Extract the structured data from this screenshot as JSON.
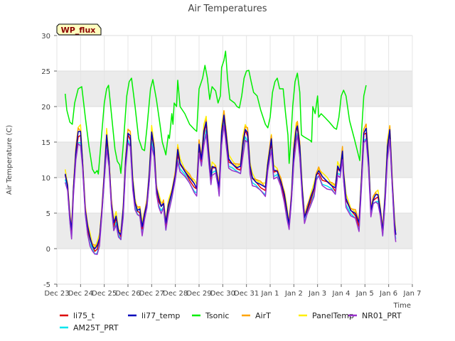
{
  "chart_data": {
    "type": "line",
    "title": "Air Temperatures",
    "ylabel": "Air Temperature (C)",
    "xlabel": "Time",
    "ylim": [
      -5,
      30
    ],
    "xlim": [
      0,
      15
    ],
    "yticks": [
      -5,
      0,
      5,
      10,
      15,
      20,
      25,
      30
    ],
    "xticks": [
      {
        "value": 0,
        "label": "Dec 23"
      },
      {
        "value": 1,
        "label": "Dec 24"
      },
      {
        "value": 2,
        "label": "Dec 25"
      },
      {
        "value": 3,
        "label": "Dec 26"
      },
      {
        "value": 4,
        "label": "Dec 27"
      },
      {
        "value": 5,
        "label": "Dec 28"
      },
      {
        "value": 6,
        "label": "Dec 29"
      },
      {
        "value": 7,
        "label": "Dec 30"
      },
      {
        "value": 8,
        "label": "Dec 31"
      },
      {
        "value": 9,
        "label": "Jan 1"
      },
      {
        "value": 10,
        "label": "Jan 2"
      },
      {
        "value": 11,
        "label": "Jan 3"
      },
      {
        "value": 12,
        "label": "Jan 4"
      },
      {
        "value": 13,
        "label": "Jan 5"
      },
      {
        "value": 14,
        "label": "Jan 6"
      },
      {
        "value": 15,
        "label": "Jan 7"
      }
    ],
    "grid": true,
    "band_fill": "#ebebeb",
    "legend_position": "bottom",
    "annotation": "WP_flux",
    "tsonic": {
      "name": "Tsonic",
      "color": "#00ee00",
      "segments": [
        [
          [
            0.35,
            21.8
          ],
          [
            0.42,
            19.5
          ],
          [
            0.55,
            17.8
          ],
          [
            0.65,
            17.5
          ],
          [
            0.75,
            20.5
          ],
          [
            0.9,
            22.5
          ],
          [
            1.05,
            22.8
          ],
          [
            1.2,
            18.5
          ],
          [
            1.35,
            14.5
          ],
          [
            1.5,
            11.2
          ],
          [
            1.6,
            10.6
          ],
          [
            1.7,
            11.0
          ],
          [
            1.75,
            10.5
          ],
          [
            1.85,
            14.5
          ],
          [
            2.0,
            20.5
          ],
          [
            2.1,
            22.5
          ],
          [
            2.18,
            23.0
          ],
          [
            2.3,
            19.0
          ],
          [
            2.45,
            14.0
          ],
          [
            2.55,
            12.3
          ],
          [
            2.65,
            11.8
          ],
          [
            2.7,
            10.6
          ],
          [
            2.8,
            14.5
          ],
          [
            2.95,
            21.5
          ],
          [
            3.05,
            23.5
          ],
          [
            3.15,
            24.0
          ],
          [
            3.3,
            20.0
          ],
          [
            3.45,
            15.5
          ],
          [
            3.6,
            14.0
          ],
          [
            3.7,
            13.8
          ],
          [
            3.8,
            17.0
          ],
          [
            3.95,
            22.5
          ],
          [
            4.05,
            23.8
          ],
          [
            4.2,
            21.0
          ],
          [
            4.35,
            17.5
          ],
          [
            4.45,
            15.0
          ],
          [
            4.55,
            13.8
          ],
          [
            4.6,
            13.2
          ],
          [
            4.7,
            16.0
          ],
          [
            4.75,
            15.5
          ],
          [
            4.85,
            19.0
          ],
          [
            4.9,
            17.5
          ],
          [
            4.95,
            20.5
          ],
          [
            5.05,
            20.0
          ],
          [
            5.1,
            23.7
          ],
          [
            5.2,
            20.0
          ],
          [
            5.4,
            19.0
          ],
          [
            5.6,
            17.5
          ],
          [
            5.8,
            16.8
          ],
          [
            5.9,
            16.5
          ],
          [
            6.0,
            22.5
          ],
          [
            6.15,
            24.0
          ],
          [
            6.25,
            25.8
          ],
          [
            6.35,
            24.0
          ],
          [
            6.45,
            21.0
          ],
          [
            6.55,
            22.8
          ],
          [
            6.7,
            22.2
          ],
          [
            6.8,
            20.5
          ],
          [
            6.9,
            21.5
          ],
          [
            6.95,
            25.5
          ],
          [
            7.05,
            26.5
          ],
          [
            7.12,
            27.8
          ],
          [
            7.2,
            24.0
          ],
          [
            7.3,
            21.0
          ],
          [
            7.5,
            20.5
          ],
          [
            7.6,
            20.0
          ],
          [
            7.7,
            19.8
          ],
          [
            7.8,
            21.5
          ],
          [
            7.9,
            24.0
          ],
          [
            8.0,
            25.0
          ],
          [
            8.1,
            25.1
          ],
          [
            8.2,
            23.5
          ],
          [
            8.3,
            22.0
          ],
          [
            8.45,
            21.5
          ],
          [
            8.6,
            19.5
          ],
          [
            8.8,
            17.5
          ],
          [
            8.9,
            17.0
          ],
          [
            9.0,
            18.5
          ],
          [
            9.1,
            22.0
          ],
          [
            9.2,
            23.5
          ],
          [
            9.3,
            24.0
          ],
          [
            9.4,
            22.5
          ],
          [
            9.55,
            22.5
          ],
          [
            9.65,
            19.0
          ],
          [
            9.75,
            16.0
          ],
          [
            9.8,
            12.0
          ],
          [
            9.85,
            14.0
          ],
          [
            9.95,
            20.0
          ],
          [
            10.05,
            23.5
          ],
          [
            10.15,
            24.7
          ],
          [
            10.25,
            22.0
          ],
          [
            10.32,
            16.0
          ],
          [
            10.4,
            15.8
          ],
          [
            10.55,
            15.5
          ],
          [
            10.7,
            15.2
          ],
          [
            10.75,
            15.0
          ],
          [
            10.8,
            20.0
          ],
          [
            10.9,
            19.0
          ],
          [
            11.0,
            21.5
          ],
          [
            11.05,
            18.5
          ],
          [
            11.15,
            19.0
          ],
          [
            11.3,
            18.5
          ],
          [
            11.5,
            17.8
          ],
          [
            11.7,
            17.0
          ],
          [
            11.8,
            16.8
          ],
          [
            11.9,
            18.5
          ],
          [
            12.0,
            21.5
          ],
          [
            12.1,
            22.3
          ],
          [
            12.2,
            21.5
          ],
          [
            12.35,
            18.0
          ],
          [
            12.55,
            15.5
          ],
          [
            12.7,
            13.5
          ],
          [
            12.78,
            12.4
          ],
          [
            12.85,
            16.0
          ],
          [
            12.95,
            21.5
          ],
          [
            13.05,
            23.0
          ]
        ]
      ]
    },
    "series": [
      {
        "name": "li75_t",
        "color": "#dd0000",
        "base": 0.25,
        "jitter": 0.2
      },
      {
        "name": "li77_temp",
        "color": "#0000bb",
        "base": 0.5,
        "jitter": 0.15
      },
      {
        "name": "Tsonic",
        "color": "#00ee00",
        "base": 0,
        "jitter": 0
      },
      {
        "name": "AirT",
        "color": "#ffa500",
        "base": 0.7,
        "jitter": 0.3
      },
      {
        "name": "PanelTemp",
        "color": "#ffee00",
        "base": 0.9,
        "jitter": 0.35
      },
      {
        "name": "NR01_PRT",
        "color": "#9932cc",
        "base": -0.45,
        "jitter": 0.25
      },
      {
        "name": "AM25T_PRT",
        "color": "#00e5ee",
        "base": -0.25,
        "jitter": 0.2
      }
    ],
    "common_profile": [
      [
        0.35,
        10.0
      ],
      [
        0.45,
        8.5
      ],
      [
        0.55,
        4.0
      ],
      [
        0.62,
        2.0
      ],
      [
        0.7,
        8.0
      ],
      [
        0.8,
        13.0
      ],
      [
        0.9,
        15.5
      ],
      [
        1.0,
        15.5
      ],
      [
        1.08,
        12.0
      ],
      [
        1.2,
        5.0
      ],
      [
        1.3,
        2.5
      ],
      [
        1.4,
        1.0
      ],
      [
        1.5,
        0.0
      ],
      [
        1.6,
        -0.5
      ],
      [
        1.7,
        -0.2
      ],
      [
        1.8,
        1.0
      ],
      [
        1.9,
        5.0
      ],
      [
        2.0,
        10.0
      ],
      [
        2.1,
        15.0
      ],
      [
        2.2,
        12.0
      ],
      [
        2.3,
        6.0
      ],
      [
        2.4,
        3.0
      ],
      [
        2.5,
        4.0
      ],
      [
        2.6,
        2.0
      ],
      [
        2.7,
        1.5
      ],
      [
        2.8,
        5.0
      ],
      [
        2.9,
        12.0
      ],
      [
        3.0,
        15.5
      ],
      [
        3.1,
        15.0
      ],
      [
        3.2,
        9.0
      ],
      [
        3.3,
        6.0
      ],
      [
        3.4,
        5.0
      ],
      [
        3.5,
        5.0
      ],
      [
        3.6,
        2.5
      ],
      [
        3.7,
        4.5
      ],
      [
        3.8,
        6.0
      ],
      [
        3.9,
        10.0
      ],
      [
        4.0,
        15.5
      ],
      [
        4.1,
        13.5
      ],
      [
        4.2,
        8.0
      ],
      [
        4.3,
        6.5
      ],
      [
        4.4,
        5.5
      ],
      [
        4.5,
        6.0
      ],
      [
        4.6,
        3.0
      ],
      [
        4.7,
        5.5
      ],
      [
        4.85,
        7.5
      ],
      [
        5.0,
        10.0
      ],
      [
        5.1,
        13.0
      ],
      [
        5.2,
        11.5
      ],
      [
        5.4,
        10.5
      ],
      [
        5.6,
        9.5
      ],
      [
        5.8,
        8.5
      ],
      [
        5.9,
        8.0
      ],
      [
        6.0,
        14.0
      ],
      [
        6.1,
        12.0
      ],
      [
        6.2,
        15.5
      ],
      [
        6.3,
        17.0
      ],
      [
        6.4,
        13.0
      ],
      [
        6.5,
        9.5
      ],
      [
        6.55,
        11.0
      ],
      [
        6.7,
        11.0
      ],
      [
        6.8,
        9.0
      ],
      [
        6.85,
        8.0
      ],
      [
        6.95,
        15.5
      ],
      [
        7.05,
        18.0
      ],
      [
        7.15,
        15.0
      ],
      [
        7.25,
        12.0
      ],
      [
        7.4,
        11.5
      ],
      [
        7.6,
        11.0
      ],
      [
        7.75,
        11.0
      ],
      [
        7.85,
        14.0
      ],
      [
        7.95,
        16.0
      ],
      [
        8.05,
        15.5
      ],
      [
        8.15,
        11.0
      ],
      [
        8.25,
        9.5
      ],
      [
        8.4,
        9.0
      ],
      [
        8.6,
        8.5
      ],
      [
        8.8,
        8.0
      ],
      [
        8.9,
        11.5
      ],
      [
        9.0,
        13.5
      ],
      [
        9.05,
        14.5
      ],
      [
        9.15,
        10.5
      ],
      [
        9.3,
        10.5
      ],
      [
        9.45,
        9.0
      ],
      [
        9.6,
        7.0
      ],
      [
        9.7,
        5.0
      ],
      [
        9.8,
        3.0
      ],
      [
        9.9,
        7.0
      ],
      [
        10.0,
        13.0
      ],
      [
        10.1,
        16.0
      ],
      [
        10.15,
        16.5
      ],
      [
        10.25,
        13.5
      ],
      [
        10.35,
        8.0
      ],
      [
        10.45,
        4.0
      ],
      [
        10.55,
        5.0
      ],
      [
        10.7,
        6.5
      ],
      [
        10.85,
        8.0
      ],
      [
        10.95,
        10.0
      ],
      [
        11.05,
        10.5
      ],
      [
        11.2,
        9.5
      ],
      [
        11.4,
        9.0
      ],
      [
        11.6,
        8.5
      ],
      [
        11.75,
        8.0
      ],
      [
        11.85,
        11.0
      ],
      [
        11.95,
        10.5
      ],
      [
        12.05,
        13.0
      ],
      [
        12.1,
        10.0
      ],
      [
        12.2,
        6.5
      ],
      [
        12.4,
        5.0
      ],
      [
        12.6,
        4.5
      ],
      [
        12.75,
        3.0
      ],
      [
        12.85,
        9.0
      ],
      [
        12.95,
        15.5
      ],
      [
        13.05,
        16.0
      ],
      [
        13.15,
        12.0
      ],
      [
        13.25,
        5.0
      ],
      [
        13.35,
        6.5
      ],
      [
        13.45,
        7.0
      ],
      [
        13.55,
        7.0
      ],
      [
        13.65,
        5.0
      ],
      [
        13.75,
        2.0
      ],
      [
        13.85,
        7.0
      ],
      [
        13.95,
        13.5
      ],
      [
        14.05,
        16.0
      ],
      [
        14.15,
        9.0
      ],
      [
        14.25,
        3.0
      ],
      [
        14.3,
        1.5
      ]
    ]
  },
  "legend": [
    {
      "label": "li75_t",
      "color": "#dd0000"
    },
    {
      "label": "li77_temp",
      "color": "#0000bb"
    },
    {
      "label": "Tsonic",
      "color": "#00ee00"
    },
    {
      "label": "AirT",
      "color": "#ffa500"
    },
    {
      "label": "PanelTemp",
      "color": "#ffee00"
    },
    {
      "label": "NR01_PRT",
      "color": "#9932cc"
    },
    {
      "label": "AM25T_PRT",
      "color": "#00e5ee"
    }
  ]
}
